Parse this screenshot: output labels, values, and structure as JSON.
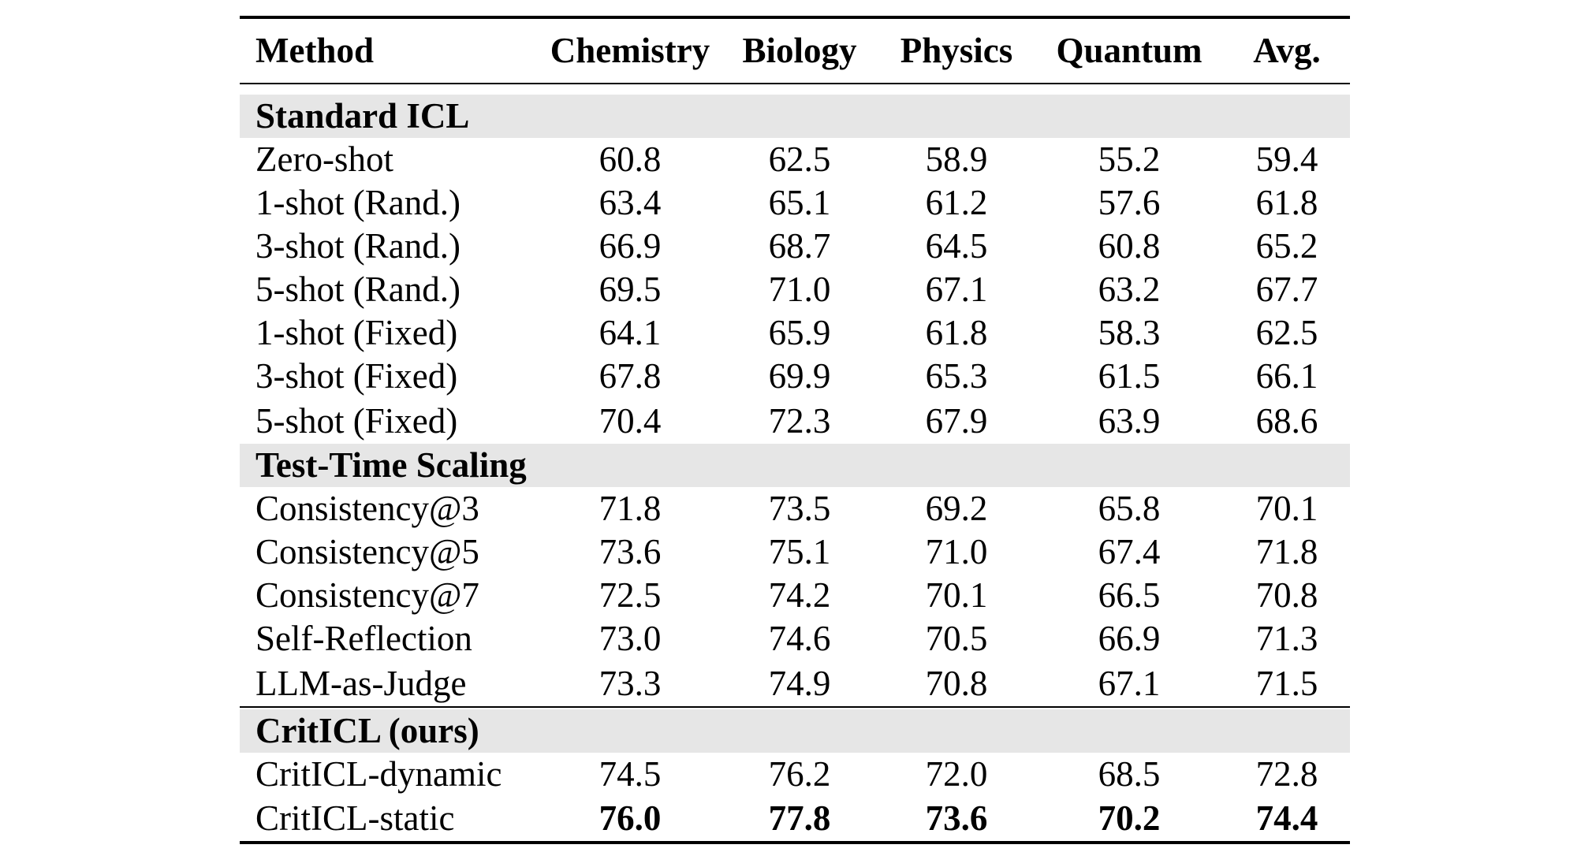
{
  "table": {
    "headers": {
      "method": "Method",
      "chemistry": "Chemistry",
      "biology": "Biology",
      "physics": "Physics",
      "quantum": "Quantum",
      "avg": "Avg."
    },
    "sections": [
      {
        "title": "Standard ICL",
        "rows": [
          {
            "method": "Zero-shot",
            "chemistry": "60.8",
            "biology": "62.5",
            "physics": "58.9",
            "quantum": "55.2",
            "avg": "59.4"
          },
          {
            "method": "1-shot (Rand.)",
            "chemistry": "63.4",
            "biology": "65.1",
            "physics": "61.2",
            "quantum": "57.6",
            "avg": "61.8"
          },
          {
            "method": "3-shot (Rand.)",
            "chemistry": "66.9",
            "biology": "68.7",
            "physics": "64.5",
            "quantum": "60.8",
            "avg": "65.2"
          },
          {
            "method": "5-shot (Rand.)",
            "chemistry": "69.5",
            "biology": "71.0",
            "physics": "67.1",
            "quantum": "63.2",
            "avg": "67.7"
          },
          {
            "method": "1-shot (Fixed)",
            "chemistry": "64.1",
            "biology": "65.9",
            "physics": "61.8",
            "quantum": "58.3",
            "avg": "62.5"
          },
          {
            "method": "3-shot (Fixed)",
            "chemistry": "67.8",
            "biology": "69.9",
            "physics": "65.3",
            "quantum": "61.5",
            "avg": "66.1"
          },
          {
            "method": "5-shot (Fixed)",
            "chemistry": "70.4",
            "biology": "72.3",
            "physics": "67.9",
            "quantum": "63.9",
            "avg": "68.6"
          }
        ]
      },
      {
        "title": "Test-Time Scaling",
        "rows": [
          {
            "method": "Consistency@3",
            "chemistry": "71.8",
            "biology": "73.5",
            "physics": "69.2",
            "quantum": "65.8",
            "avg": "70.1"
          },
          {
            "method": "Consistency@5",
            "chemistry": "73.6",
            "biology": "75.1",
            "physics": "71.0",
            "quantum": "67.4",
            "avg": "71.8"
          },
          {
            "method": "Consistency@7",
            "chemistry": "72.5",
            "biology": "74.2",
            "physics": "70.1",
            "quantum": "66.5",
            "avg": "70.8"
          },
          {
            "method": "Self-Reflection",
            "chemistry": "73.0",
            "biology": "74.6",
            "physics": "70.5",
            "quantum": "66.9",
            "avg": "71.3"
          },
          {
            "method": "LLM-as-Judge",
            "chemistry": "73.3",
            "biology": "74.9",
            "physics": "70.8",
            "quantum": "67.1",
            "avg": "71.5"
          }
        ]
      },
      {
        "title": "CritICL (ours)",
        "rows": [
          {
            "method": "CritICL-dynamic",
            "chemistry": "74.5",
            "biology": "76.2",
            "physics": "72.0",
            "quantum": "68.5",
            "avg": "72.8"
          },
          {
            "method": "CritICL-static",
            "chemistry": "76.0",
            "biology": "77.8",
            "physics": "73.6",
            "quantum": "70.2",
            "avg": "74.4",
            "bold": true
          }
        ]
      }
    ]
  }
}
